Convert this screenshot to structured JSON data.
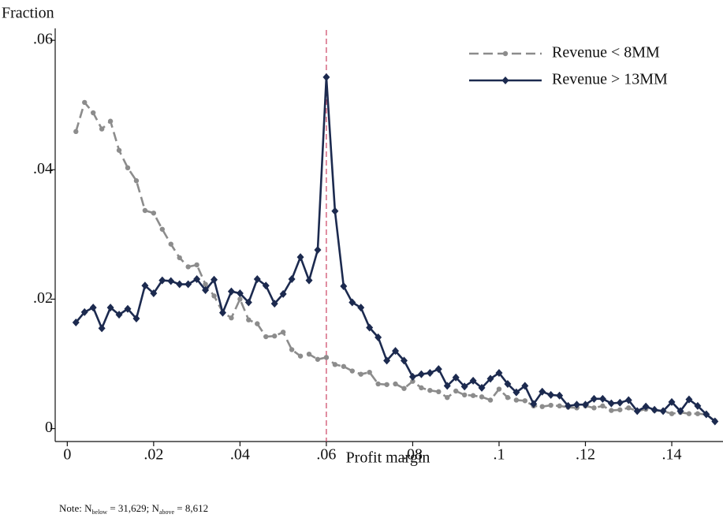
{
  "chart_data": {
    "type": "line",
    "y_axis_title": "Fraction",
    "x_axis_title": "Profit margin",
    "note": [
      "Note: N",
      "below",
      " = 31,629; N",
      "above",
      " = 8,612"
    ],
    "legend_position": "top-right",
    "xlim": [
      -0.0028,
      0.1515
    ],
    "ylim": [
      -0.002,
      0.0616
    ],
    "xticks": [
      0,
      {
        "value": 0.02,
        "label": ".02"
      },
      {
        "value": 0.04,
        "label": ".04"
      },
      {
        "value": 0.06,
        "label": ".06"
      },
      {
        "value": 0.08,
        "label": ".08"
      },
      {
        "value": 0.1,
        "label": ".1"
      },
      {
        "value": 0.12,
        "label": ".12"
      },
      {
        "value": 0.14,
        "label": ".14"
      }
    ],
    "yticks": [
      0,
      {
        "value": 0.02,
        "label": ".02"
      },
      {
        "value": 0.04,
        "label": ".04"
      },
      {
        "value": 0.06,
        "label": ".06"
      }
    ],
    "reference_line": {
      "x": 0.06,
      "color": "#d0506e"
    },
    "x": [
      0.002,
      0.004,
      0.006,
      0.008,
      0.01,
      0.012,
      0.014,
      0.016,
      0.018,
      0.02,
      0.022,
      0.024,
      0.026,
      0.028,
      0.03,
      0.032,
      0.034,
      0.036,
      0.038,
      0.04,
      0.042,
      0.044,
      0.046,
      0.048,
      0.05,
      0.052,
      0.054,
      0.056,
      0.058,
      0.06,
      0.062,
      0.064,
      0.066,
      0.068,
      0.07,
      0.072,
      0.074,
      0.076,
      0.078,
      0.08,
      0.082,
      0.084,
      0.086,
      0.088,
      0.09,
      0.092,
      0.094,
      0.096,
      0.098,
      0.1,
      0.102,
      0.104,
      0.106,
      0.108,
      0.11,
      0.112,
      0.114,
      0.116,
      0.118,
      0.12,
      0.122,
      0.124,
      0.126,
      0.128,
      0.13,
      0.132,
      0.134,
      0.136,
      0.138,
      0.14,
      0.142,
      0.144,
      0.146,
      0.148,
      0.15
    ],
    "series": [
      {
        "name": "Revenue < 8MM",
        "color": "#8c8c8c",
        "dash": true,
        "marker": "circle",
        "values": [
          0.0459,
          0.0504,
          0.0488,
          0.0463,
          0.0475,
          0.043,
          0.0403,
          0.0383,
          0.0337,
          0.0333,
          0.0308,
          0.0285,
          0.0264,
          0.025,
          0.0253,
          0.0223,
          0.0205,
          0.018,
          0.0171,
          0.02,
          0.0168,
          0.0162,
          0.0142,
          0.0143,
          0.0149,
          0.0122,
          0.0112,
          0.0115,
          0.0107,
          0.011,
          0.0099,
          0.0096,
          0.0089,
          0.0084,
          0.0087,
          0.0069,
          0.0068,
          0.0069,
          0.0062,
          0.0073,
          0.0063,
          0.0059,
          0.0057,
          0.0048,
          0.0058,
          0.0052,
          0.0051,
          0.0049,
          0.0044,
          0.0061,
          0.0048,
          0.0044,
          0.0043,
          0.0035,
          0.0034,
          0.0036,
          0.0035,
          0.0033,
          0.0032,
          0.0035,
          0.0032,
          0.0035,
          0.0028,
          0.0029,
          0.0032,
          0.0027,
          0.003,
          0.0028,
          0.0027,
          0.0023,
          0.0025,
          0.0023,
          0.0023,
          0.0022,
          0.0012
        ]
      },
      {
        "name": "Revenue > 13MM",
        "color": "#1c2a4f",
        "dash": false,
        "marker": "diamond",
        "values": [
          0.0164,
          0.018,
          0.0187,
          0.0155,
          0.0187,
          0.0176,
          0.0185,
          0.017,
          0.0221,
          0.0209,
          0.0229,
          0.0228,
          0.0223,
          0.0223,
          0.0231,
          0.0214,
          0.023,
          0.0179,
          0.0212,
          0.0209,
          0.0195,
          0.0231,
          0.0221,
          0.0193,
          0.0208,
          0.0231,
          0.0265,
          0.0229,
          0.0276,
          0.0543,
          0.0336,
          0.022,
          0.0195,
          0.0187,
          0.0156,
          0.0141,
          0.0105,
          0.012,
          0.0105,
          0.008,
          0.0084,
          0.0086,
          0.0092,
          0.0066,
          0.0079,
          0.0065,
          0.0074,
          0.0063,
          0.0077,
          0.0086,
          0.0069,
          0.0056,
          0.0066,
          0.0038,
          0.0057,
          0.0052,
          0.0051,
          0.0035,
          0.0037,
          0.0037,
          0.0046,
          0.0046,
          0.0039,
          0.004,
          0.0044,
          0.0027,
          0.0034,
          0.0029,
          0.0027,
          0.0041,
          0.0027,
          0.0045,
          0.0035,
          0.0022,
          0.0011
        ]
      }
    ]
  }
}
